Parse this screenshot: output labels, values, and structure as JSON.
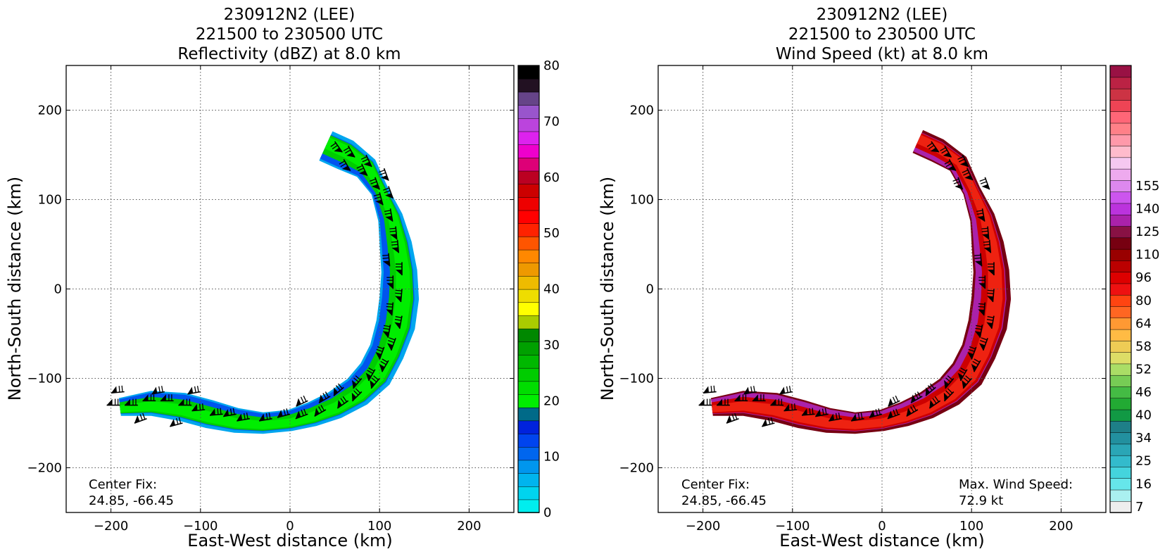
{
  "chart_data": [
    {
      "type": "heatmap",
      "title": [
        "230912N2 (LEE)",
        "221500 to 230500 UTC",
        "Reflectivity (dBZ) at 8.0 km"
      ],
      "xlabel": "East-West distance (km)",
      "ylabel": "North-South distance (km)",
      "xlim": [
        -250,
        250
      ],
      "ylim": [
        -250,
        250
      ],
      "xticks": [
        -200,
        -100,
        0,
        100,
        200
      ],
      "yticks": [
        -200,
        -100,
        0,
        100,
        200
      ],
      "xtick_labels": [
        "−200",
        "−100",
        "0",
        "100",
        "200"
      ],
      "ytick_labels": [
        "−200",
        "−100",
        "0",
        "100",
        "200"
      ],
      "grid": true,
      "annotation": {
        "line1": "Center Fix:",
        "line2": "24.85, -66.45"
      },
      "colorbar": {
        "label_values": [
          "0",
          "10",
          "20",
          "30",
          "40",
          "50",
          "60",
          "70",
          "80"
        ],
        "range": [
          0,
          80
        ],
        "colors": [
          "#00eeee",
          "#00d4ee",
          "#00b4ee",
          "#0096ee",
          "#0066ee",
          "#0044ee",
          "#0022dd",
          "#006a88",
          "#00ee00",
          "#00dd00",
          "#00cc00",
          "#00b800",
          "#00a000",
          "#008800",
          "#aacc00",
          "#ffff00",
          "#eedd00",
          "#eebb00",
          "#ee9900",
          "#ff8800",
          "#ff5500",
          "#ff2200",
          "#ff0000",
          "#ee0000",
          "#cc0000",
          "#bb0022",
          "#dd0077",
          "#ee00cc",
          "#dd22ee",
          "#bb44dd",
          "#9955cc",
          "#664488",
          "#221122",
          "#000000"
        ]
      },
      "field": {
        "path": [
          [
            40,
            160
          ],
          [
            62,
            150
          ],
          [
            85,
            135
          ],
          [
            100,
            110
          ],
          [
            112,
            80
          ],
          [
            118,
            50
          ],
          [
            122,
            20
          ],
          [
            122,
            -10
          ],
          [
            118,
            -40
          ],
          [
            108,
            -70
          ],
          [
            95,
            -95
          ],
          [
            75,
            -115
          ],
          [
            50,
            -130
          ],
          [
            25,
            -140
          ],
          [
            0,
            -147
          ],
          [
            -30,
            -150
          ],
          [
            -60,
            -147
          ],
          [
            -90,
            -140
          ],
          [
            -120,
            -132
          ],
          [
            -155,
            -128
          ],
          [
            -190,
            -132
          ]
        ],
        "halfwidth": [
          18,
          18,
          14,
          10,
          14,
          18,
          20,
          22,
          22,
          20,
          20,
          18,
          16,
          14,
          12,
          12,
          14,
          16,
          16,
          14,
          10
        ],
        "band_colors": [
          "#00a6ee",
          "#0055ee",
          "#00cc00",
          "#00ee00"
        ]
      },
      "barbs": [
        [
          50,
          165,
          -55
        ],
        [
          65,
          160,
          -60
        ],
        [
          85,
          150,
          -65
        ],
        [
          60,
          145,
          -60
        ],
        [
          80,
          140,
          -65
        ],
        [
          105,
          135,
          -70
        ],
        [
          95,
          125,
          -70
        ],
        [
          110,
          115,
          -70
        ],
        [
          100,
          108,
          -75
        ],
        [
          112,
          90,
          -80
        ],
        [
          118,
          70,
          -85
        ],
        [
          120,
          55,
          -85
        ],
        [
          110,
          40,
          -85
        ],
        [
          125,
          30,
          -90
        ],
        [
          115,
          15,
          -90
        ],
        [
          125,
          0,
          -95
        ],
        [
          115,
          -15,
          -95
        ],
        [
          125,
          -30,
          -100
        ],
        [
          112,
          -40,
          -100
        ],
        [
          118,
          -55,
          -110
        ],
        [
          105,
          -65,
          -110
        ],
        [
          110,
          -80,
          -120
        ],
        [
          95,
          -90,
          -120
        ],
        [
          100,
          -100,
          -130
        ],
        [
          80,
          -100,
          -130
        ],
        [
          80,
          -115,
          -135
        ],
        [
          60,
          -110,
          -140
        ],
        [
          65,
          -125,
          -145
        ],
        [
          45,
          -120,
          -150
        ],
        [
          40,
          -135,
          -150
        ],
        [
          20,
          -125,
          -155
        ],
        [
          20,
          -140,
          -160
        ],
        [
          0,
          -140,
          -165
        ],
        [
          -20,
          -145,
          -170
        ],
        [
          -45,
          -145,
          -170
        ],
        [
          -60,
          -140,
          -170
        ],
        [
          -75,
          -140,
          -175
        ],
        [
          -95,
          -135,
          -175
        ],
        [
          -110,
          -130,
          -180
        ],
        [
          -130,
          -125,
          -180
        ],
        [
          -150,
          -125,
          -180
        ],
        [
          -170,
          -130,
          -180
        ],
        [
          -190,
          -130,
          -180
        ],
        [
          -100,
          -115,
          -170
        ],
        [
          -140,
          -115,
          -170
        ],
        [
          -185,
          -115,
          -175
        ],
        [
          -160,
          -145,
          -160
        ],
        [
          -120,
          -150,
          -165
        ]
      ]
    },
    {
      "type": "heatmap",
      "title": [
        "230912N2 (LEE)",
        "221500 to 230500 UTC",
        "Wind Speed (kt) at 8.0 km"
      ],
      "xlabel": "East-West distance (km)",
      "ylabel": "North-South distance (km)",
      "xlim": [
        -250,
        250
      ],
      "ylim": [
        -250,
        250
      ],
      "xticks": [
        -200,
        -100,
        0,
        100,
        200
      ],
      "yticks": [
        -200,
        -100,
        0,
        100,
        200
      ],
      "xtick_labels": [
        "−200",
        "−100",
        "0",
        "100",
        "200"
      ],
      "ytick_labels": [
        "−200",
        "−100",
        "0",
        "100",
        "200"
      ],
      "grid": true,
      "annotation": {
        "line1": "Center Fix:",
        "line2": "24.85, -66.45"
      },
      "annotation_right": {
        "line1": "Max. Wind Speed:",
        "line2": "72.9 kt"
      },
      "colorbar": {
        "label_values": [
          "7",
          "16",
          "25",
          "34",
          "40",
          "46",
          "52",
          "58",
          "64",
          "80",
          "96",
          "110",
          "125",
          "140",
          "155"
        ],
        "range": [
          0,
          26
        ],
        "label_index": [
          0.5,
          2.5,
          4.5,
          6.5,
          8.5,
          10.5,
          12.5,
          14.5,
          16.5,
          18.5,
          20.5,
          22.5,
          24.5,
          26.5,
          28.5
        ],
        "colors": [
          "#eeeeee",
          "#aaf0f0",
          "#66e6ea",
          "#44d4dd",
          "#33bbcc",
          "#2aa6b6",
          "#22909f",
          "#1e7f88",
          "#119944",
          "#22aa33",
          "#44bb44",
          "#77cc55",
          "#aadd66",
          "#dddd66",
          "#eecc55",
          "#ffbb44",
          "#ff9933",
          "#ff6622",
          "#ff4411",
          "#ee1111",
          "#dd0000",
          "#bb0000",
          "#990000",
          "#770011",
          "#881144",
          "#aa22aa",
          "#bb33dd",
          "#cc55ee",
          "#dd88ee",
          "#eeaaee",
          "#f5c8f0",
          "#ffbbcc",
          "#ff99aa",
          "#ff8088",
          "#ff6677",
          "#ee4455",
          "#cc3344",
          "#bb2244",
          "#991144"
        ]
      },
      "field": {
        "path": [
          [
            40,
            165
          ],
          [
            62,
            155
          ],
          [
            85,
            140
          ],
          [
            100,
            110
          ],
          [
            112,
            80
          ],
          [
            118,
            50
          ],
          [
            122,
            20
          ],
          [
            122,
            -10
          ],
          [
            118,
            -40
          ],
          [
            108,
            -70
          ],
          [
            95,
            -95
          ],
          [
            75,
            -115
          ],
          [
            50,
            -130
          ],
          [
            25,
            -140
          ],
          [
            0,
            -147
          ],
          [
            -30,
            -150
          ],
          [
            -60,
            -147
          ],
          [
            -90,
            -140
          ],
          [
            -120,
            -132
          ],
          [
            -155,
            -128
          ],
          [
            -190,
            -132
          ]
        ],
        "halfwidth": [
          14,
          14,
          12,
          10,
          14,
          18,
          20,
          22,
          22,
          20,
          20,
          18,
          16,
          14,
          12,
          12,
          14,
          16,
          16,
          14,
          10
        ],
        "band_colors": [
          "#770011",
          "#aa22aa",
          "#cc0000",
          "#ee2211"
        ]
      },
      "barbs": [
        [
          55,
          165,
          -55
        ],
        [
          70,
          160,
          -60
        ],
        [
          90,
          150,
          -65
        ],
        [
          75,
          145,
          -60
        ],
        [
          95,
          135,
          -65
        ],
        [
          115,
          125,
          -70
        ],
        [
          85,
          125,
          -70
        ],
        [
          112,
          90,
          -80
        ],
        [
          118,
          70,
          -85
        ],
        [
          120,
          55,
          -85
        ],
        [
          110,
          40,
          -85
        ],
        [
          125,
          30,
          -90
        ],
        [
          115,
          15,
          -90
        ],
        [
          125,
          0,
          -95
        ],
        [
          115,
          -15,
          -95
        ],
        [
          125,
          -30,
          -100
        ],
        [
          112,
          -40,
          -100
        ],
        [
          118,
          -55,
          -110
        ],
        [
          105,
          -65,
          -110
        ],
        [
          110,
          -80,
          -120
        ],
        [
          95,
          -90,
          -120
        ],
        [
          100,
          -100,
          -130
        ],
        [
          80,
          -100,
          -130
        ],
        [
          80,
          -115,
          -135
        ],
        [
          60,
          -110,
          -140
        ],
        [
          65,
          -125,
          -145
        ],
        [
          45,
          -120,
          -150
        ],
        [
          40,
          -135,
          -150
        ],
        [
          20,
          -125,
          -155
        ],
        [
          20,
          -140,
          -160
        ],
        [
          0,
          -140,
          -165
        ],
        [
          -20,
          -145,
          -170
        ],
        [
          -45,
          -145,
          -170
        ],
        [
          -60,
          -140,
          -170
        ],
        [
          -75,
          -140,
          -175
        ],
        [
          -95,
          -135,
          -175
        ],
        [
          -110,
          -130,
          -180
        ],
        [
          -130,
          -125,
          -180
        ],
        [
          -150,
          -125,
          -180
        ],
        [
          -170,
          -130,
          -180
        ],
        [
          -190,
          -130,
          -180
        ],
        [
          -100,
          -115,
          -170
        ],
        [
          -140,
          -115,
          -170
        ],
        [
          -185,
          -115,
          -175
        ],
        [
          -160,
          -145,
          -160
        ],
        [
          -120,
          -150,
          -165
        ]
      ]
    }
  ]
}
